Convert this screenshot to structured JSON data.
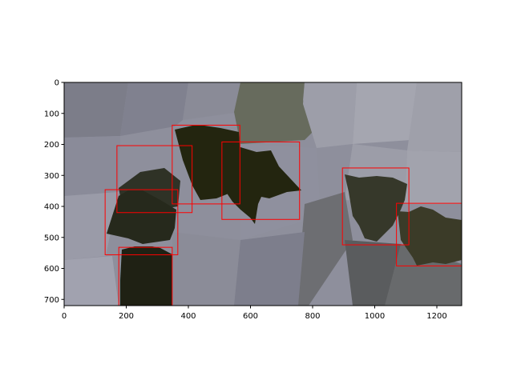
{
  "figure": {
    "background": "#ffffff",
    "axes_color": "#000000",
    "box_color": "#ff0000"
  },
  "image_plot": {
    "x_ticks": [
      0,
      200,
      400,
      600,
      800,
      1000,
      1200
    ],
    "y_ticks": [
      0,
      100,
      200,
      300,
      400,
      500,
      600,
      700
    ],
    "xlim": [
      0,
      1280
    ],
    "ylim": [
      720,
      0
    ],
    "boxes": [
      {
        "x1": 348,
        "y1": 138,
        "x2": 566,
        "y2": 392
      },
      {
        "x1": 508,
        "y1": 192,
        "x2": 758,
        "y2": 442
      },
      {
        "x1": 170,
        "y1": 204,
        "x2": 412,
        "y2": 420
      },
      {
        "x1": 132,
        "y1": 346,
        "x2": 366,
        "y2": 556
      },
      {
        "x1": 176,
        "y1": 532,
        "x2": 348,
        "y2": 720
      },
      {
        "x1": 896,
        "y1": 276,
        "x2": 1110,
        "y2": 524
      },
      {
        "x1": 1070,
        "y1": 390,
        "x2": 1280,
        "y2": 592
      }
    ]
  }
}
